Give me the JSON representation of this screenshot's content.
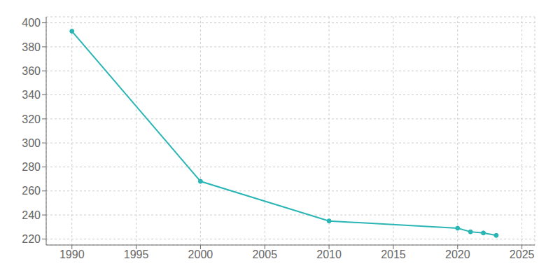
{
  "chart_data": {
    "type": "line",
    "x": [
      1990,
      2000,
      2010,
      2020,
      2021,
      2022,
      2023
    ],
    "values": [
      393,
      268,
      235,
      229,
      226,
      225,
      223
    ],
    "color": "#2ab5b5",
    "marker": "circle",
    "xlim": [
      1988,
      2026
    ],
    "ylim": [
      215,
      405
    ],
    "xticks": [
      1990,
      1995,
      2000,
      2005,
      2010,
      2015,
      2020,
      2025
    ],
    "yticks": [
      220,
      240,
      260,
      280,
      300,
      320,
      340,
      360,
      380,
      400
    ],
    "grid": true
  }
}
